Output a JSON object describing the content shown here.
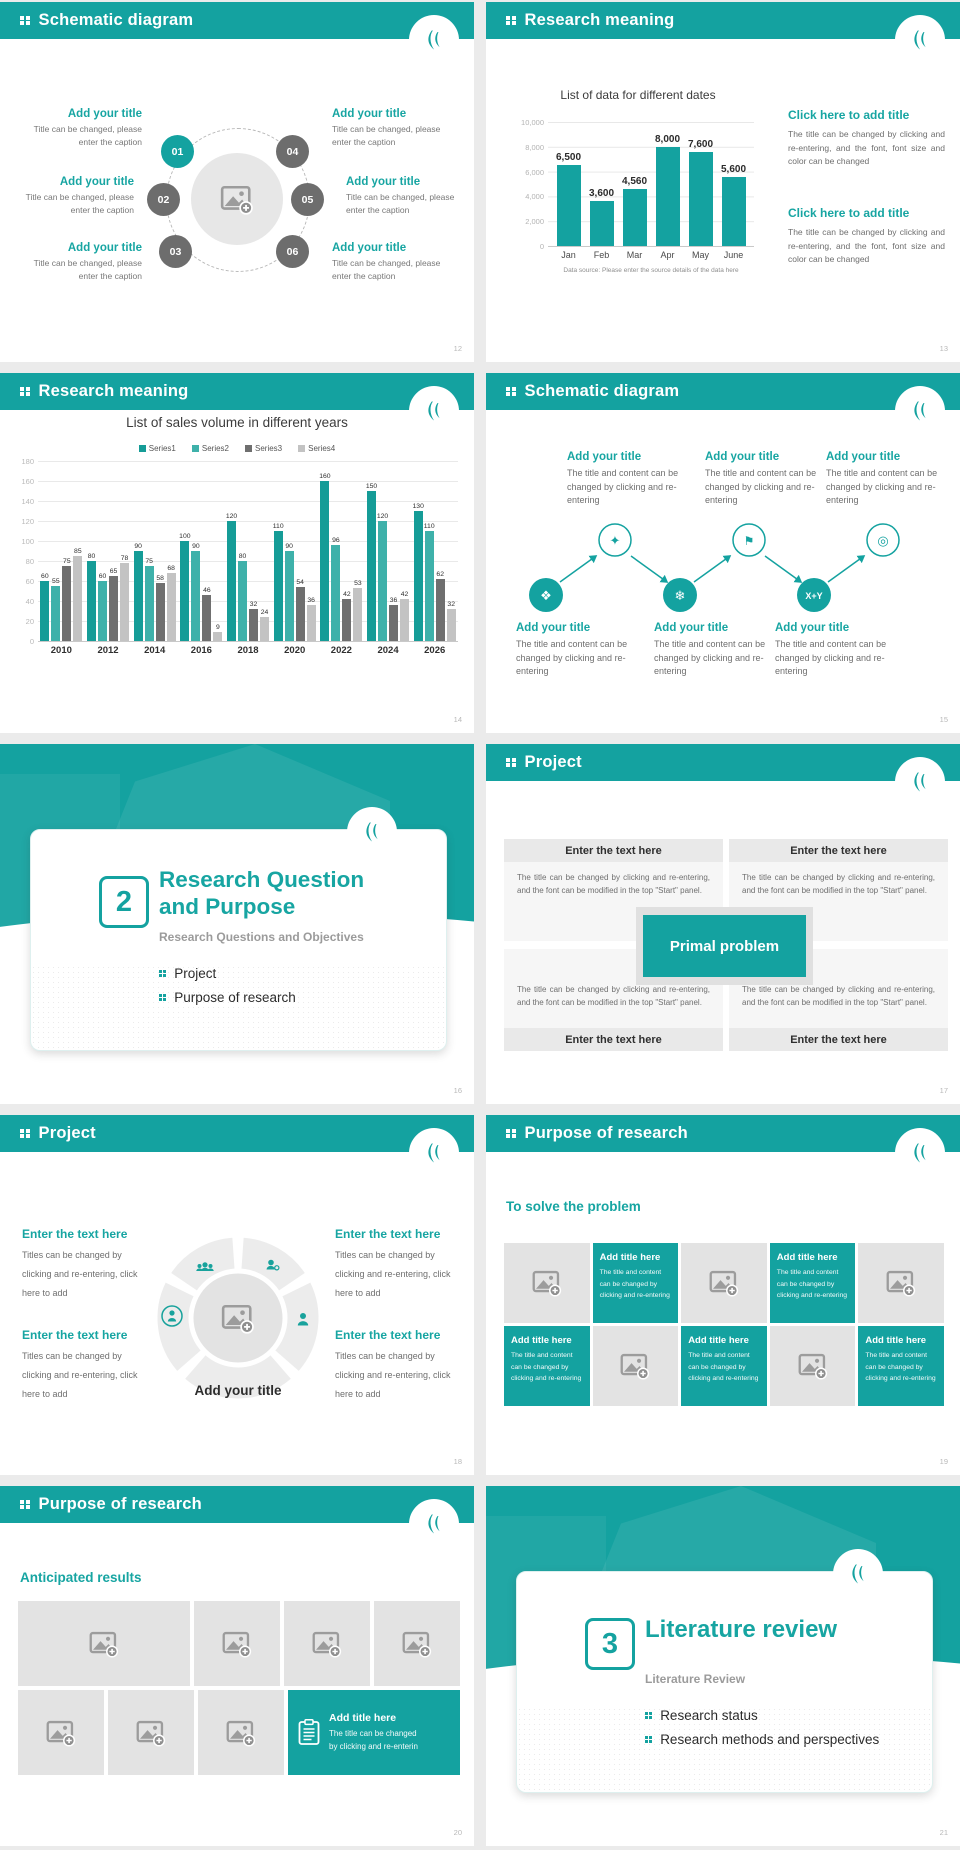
{
  "colors": {
    "teal_primary": "#14a2a0",
    "teal_text": "#17a5a2",
    "node_gray": "#6d6d6d",
    "placeholder_bg": "#e3e3e3",
    "page_bg": "#ebebeb",
    "series1": "#159c97",
    "series2": "#3eb1aa",
    "series3": "#6f6f6f",
    "series4": "#c3c3c3"
  },
  "icons": {
    "header_prefix": "four-squares",
    "logo": "quill-leaf-mark",
    "image_placeholder": "image-plus-icon",
    "s15_glyphs": [
      "❖",
      "✦",
      "❄",
      "⚑",
      "X+Y",
      "◎"
    ],
    "clipboard": "clipboard-icon"
  },
  "chart_data": [
    {
      "type": "bar",
      "title": "List of data for different dates",
      "categories": [
        "Jan",
        "Feb",
        "Mar",
        "Apr",
        "May",
        "June"
      ],
      "values": [
        6500,
        3600,
        4560,
        8000,
        7600,
        5600
      ],
      "labels": [
        "6,500",
        "3,600",
        "4,560",
        "8,000",
        "7,600",
        "5,600"
      ],
      "xlabel": "",
      "ylabel": "",
      "ylim": [
        0,
        10000
      ],
      "yticks": [
        "10,000",
        "8,000",
        "6,000",
        "4,000",
        "2,000",
        "0"
      ],
      "grid": true,
      "legend_position": "none",
      "bar_color": "#14a2a0",
      "caption": "Data source: Please enter the source details of the data here"
    },
    {
      "type": "bar",
      "title": "List of sales volume in different years",
      "categories": [
        "2010",
        "2012",
        "2014",
        "2016",
        "2018",
        "2020",
        "2022",
        "2024",
        "2026"
      ],
      "series": [
        {
          "name": "Series1",
          "color": "#159c97",
          "values": [
            60,
            80,
            90,
            100,
            120,
            110,
            160,
            150,
            130
          ]
        },
        {
          "name": "Series2",
          "color": "#3eb1aa",
          "values": [
            55,
            60,
            75,
            90,
            80,
            90,
            96,
            120,
            110
          ]
        },
        {
          "name": "Series3",
          "color": "#6f6f6f",
          "values": [
            75,
            65,
            58,
            46,
            32,
            54,
            42,
            36,
            62
          ]
        },
        {
          "name": "Series4",
          "color": "#c3c3c3",
          "values": [
            85,
            78,
            68,
            9,
            24,
            36,
            53,
            42,
            32
          ]
        }
      ],
      "xlabel": "",
      "ylabel": "",
      "ylim": [
        0,
        180
      ],
      "yticks": [
        "180",
        "160",
        "140",
        "120",
        "100",
        "80",
        "60",
        "40",
        "20",
        "0"
      ],
      "grid": true,
      "legend_position": "top"
    }
  ],
  "slides": {
    "s12": {
      "page": "12",
      "title": "Schematic diagram",
      "items": [
        {
          "title": "Add your title",
          "caption": "Title can be changed, please enter the caption"
        },
        {
          "title": "Add your title",
          "caption": "Title can be changed, please enter the caption"
        },
        {
          "title": "Add your title",
          "caption": "Title can be changed, please enter the caption"
        },
        {
          "title": "Add your title",
          "caption": "Title can be changed, please enter the caption"
        },
        {
          "title": "Add your title",
          "caption": "Title can be changed, please enter the caption"
        },
        {
          "title": "Add your title",
          "caption": "Title can be changed, please enter the caption"
        }
      ],
      "nodes": [
        "01",
        "02",
        "03",
        "04",
        "05",
        "06"
      ]
    },
    "s13": {
      "page": "13",
      "title": "Research meaning",
      "blocks": [
        {
          "title": "Click here to add title",
          "body": "The title can be changed by clicking and re-entering, and the font, font size and color can be changed"
        },
        {
          "title": "Click here to add title",
          "body": "The title can be changed by clicking and re-entering, and the font, font size and color can be changed"
        }
      ]
    },
    "s14": {
      "page": "14",
      "title": "Research meaning"
    },
    "s15": {
      "page": "15",
      "title": "Schematic diagram",
      "top": [
        {
          "title": "Add your title",
          "body": "The title and content can be changed by clicking and re-entering"
        },
        {
          "title": "Add your title",
          "body": "The title and content can be changed by clicking and re-entering"
        },
        {
          "title": "Add your title",
          "body": "The title and content can be changed by clicking and re-entering"
        }
      ],
      "bottom": [
        {
          "title": "Add your title",
          "body": "The title and content can be changed by clicking and re-entering"
        },
        {
          "title": "Add your title",
          "body": "The title and content can be changed by clicking and re-entering"
        },
        {
          "title": "Add your title",
          "body": "The title and content can be changed by clicking and re-entering"
        }
      ]
    },
    "s16": {
      "page": "16",
      "number": "2",
      "title_line1": "Research Question",
      "title_line2": "and Purpose",
      "subtitle": "Research Questions and Objectives",
      "bullets": [
        "Project",
        "Purpose of research"
      ]
    },
    "s17": {
      "page": "17",
      "title": "Project",
      "center": "Primal problem",
      "boxes": [
        {
          "header": "Enter the text here",
          "body": "The title can be changed by clicking and re-entering, and the font can be modified in the top \"Start\" panel."
        },
        {
          "header": "Enter the text here",
          "body": "The title can be changed by clicking and re-entering, and the font can be modified in the top \"Start\" panel."
        },
        {
          "header": "Enter the text here",
          "body": "The title can be changed by clicking and re-entering, and the font can be modified in the top \"Start\" panel."
        },
        {
          "header": "Enter the text here",
          "body": "The title can be changed by clicking and re-entering, and the font can be modified in the top \"Start\" panel."
        }
      ]
    },
    "s18": {
      "page": "18",
      "title": "Project",
      "center_label": "Add your title",
      "blocks": [
        {
          "title": "Enter the text here",
          "body": "Titles can be changed by clicking and re-entering, click here to add"
        },
        {
          "title": "Enter the text here",
          "body": "Titles can be changed by clicking and re-entering, click here to add"
        },
        {
          "title": "Enter the text here",
          "body": "Titles can be changed by clicking and re-entering, click here to add"
        },
        {
          "title": "Enter the text here",
          "body": "Titles can be changed by clicking and re-entering, click here to add"
        }
      ]
    },
    "s19": {
      "page": "19",
      "title": "Purpose of research",
      "heading": "To solve the problem",
      "pattern": [
        "img",
        "text",
        "img",
        "text",
        "img",
        "text",
        "img",
        "text",
        "img",
        "text"
      ],
      "tile": {
        "title": "Add title here",
        "body": "The title and content can be changed by clicking and re-entering"
      }
    },
    "s20": {
      "page": "20",
      "title": "Purpose of research",
      "heading": "Anticipated results",
      "tile": {
        "title": "Add title here",
        "line1": "The title can be changed",
        "line2": "by clicking and re-enterin"
      }
    },
    "s21": {
      "page": "21",
      "number": "3",
      "title": "Literature review",
      "subtitle": "Literature Review",
      "bullets": [
        "Research status",
        "Research methods and perspectives"
      ]
    }
  }
}
